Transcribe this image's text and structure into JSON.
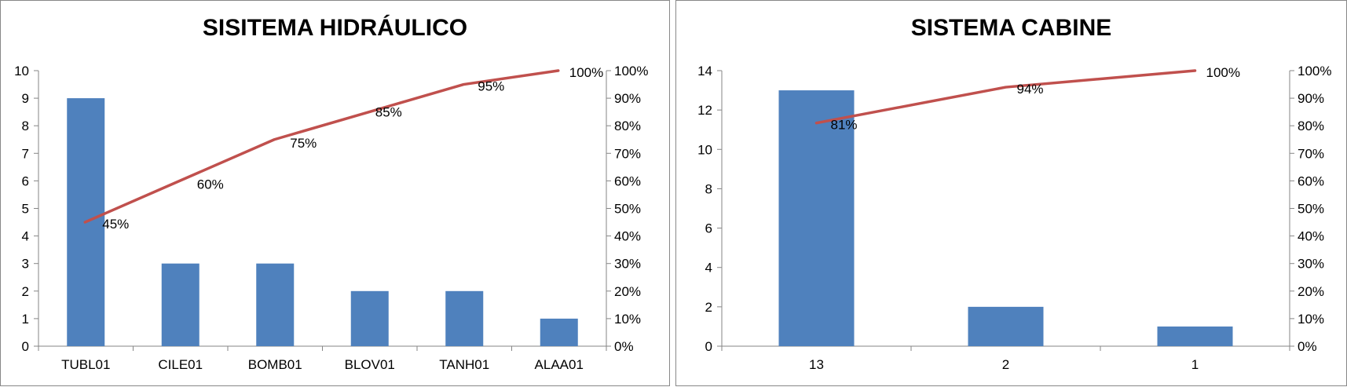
{
  "colors": {
    "bar": "#4f81bd",
    "line": "#c0504d",
    "axis": "#868686"
  },
  "chart_data": [
    {
      "type": "bar",
      "title": "SISITEMA HIDRÁULICO",
      "categories": [
        "TUBL01",
        "CILE01",
        "BOMB01",
        "BLOV01",
        "TANH01",
        "ALAA01"
      ],
      "series": [
        {
          "kind": "bar",
          "values": [
            9,
            3,
            3,
            2,
            2,
            1
          ]
        },
        {
          "kind": "line",
          "axis": "secondary",
          "values": [
            45,
            60,
            75,
            85,
            95,
            100
          ]
        }
      ],
      "data_labels": [
        "45%",
        "60%",
        "75%",
        "85%",
        "95%",
        "100%"
      ],
      "ylim": [
        0,
        10
      ],
      "yticks": [
        "0",
        "1",
        "2",
        "3",
        "4",
        "5",
        "6",
        "7",
        "8",
        "9",
        "10"
      ],
      "y2lim": [
        0,
        100
      ],
      "y2ticks": [
        "0%",
        "10%",
        "20%",
        "30%",
        "40%",
        "50%",
        "60%",
        "70%",
        "80%",
        "90%",
        "100%"
      ],
      "grid": false,
      "legend": "none"
    },
    {
      "type": "bar",
      "title": "SISTEMA CABINE",
      "categories": [
        "13",
        "2",
        "1"
      ],
      "series": [
        {
          "kind": "bar",
          "values": [
            13,
            2,
            1
          ]
        },
        {
          "kind": "line",
          "axis": "secondary",
          "values": [
            81,
            94,
            100
          ]
        }
      ],
      "data_labels": [
        "81%",
        "94%",
        "100%"
      ],
      "ylim": [
        0,
        14
      ],
      "yticks": [
        "0",
        "2",
        "4",
        "6",
        "8",
        "10",
        "12",
        "14"
      ],
      "y2lim": [
        0,
        100
      ],
      "y2ticks": [
        "0%",
        "10%",
        "20%",
        "30%",
        "40%",
        "50%",
        "60%",
        "70%",
        "80%",
        "90%",
        "100%"
      ],
      "grid": false,
      "legend": "none"
    }
  ]
}
